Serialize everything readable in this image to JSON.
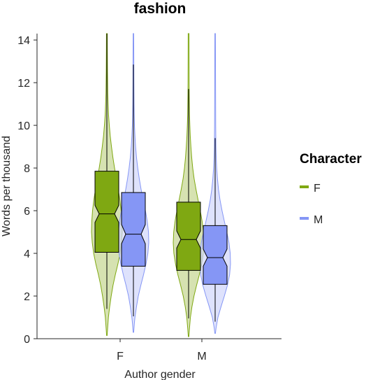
{
  "chart_data": {
    "type": "violin-box",
    "title": "fashion",
    "xlabel": "Author gender",
    "ylabel": "Words per thousand",
    "categories": [
      "F",
      "M"
    ],
    "ylim": [
      0,
      14.3
    ],
    "yticks": [
      0,
      2,
      4,
      6,
      8,
      10,
      12,
      14
    ],
    "legend": {
      "title": "Character",
      "placement": "right",
      "entries": [
        {
          "label": "F",
          "color": "#7fa812"
        },
        {
          "label": "M",
          "color": "#8596f5"
        }
      ]
    },
    "series": [
      {
        "name": "F",
        "color": "#7fa812",
        "violin_fill": "#c5d690",
        "groups": [
          {
            "category": "F",
            "q1": 4.05,
            "median": 5.85,
            "q3": 7.85,
            "notch_low": 5.45,
            "notch_high": 6.25,
            "whisker_low": 1.4,
            "whisker_high": 14.3,
            "min": 0.15,
            "max": 14.3,
            "density": [
              [
                0.15,
                0.02
              ],
              [
                0.5,
                0.05
              ],
              [
                1.0,
                0.1
              ],
              [
                1.5,
                0.18
              ],
              [
                2.0,
                0.28
              ],
              [
                2.5,
                0.4
              ],
              [
                3.0,
                0.55
              ],
              [
                3.5,
                0.72
              ],
              [
                4.0,
                0.86
              ],
              [
                4.5,
                0.95
              ],
              [
                5.0,
                1.0
              ],
              [
                5.5,
                0.98
              ],
              [
                6.0,
                0.93
              ],
              [
                6.5,
                0.85
              ],
              [
                7.0,
                0.74
              ],
              [
                7.5,
                0.62
              ],
              [
                8.0,
                0.5
              ],
              [
                8.5,
                0.39
              ],
              [
                9.0,
                0.3
              ],
              [
                9.5,
                0.22
              ],
              [
                10.0,
                0.16
              ],
              [
                10.5,
                0.11
              ],
              [
                11.0,
                0.08
              ],
              [
                11.5,
                0.06
              ],
              [
                12.0,
                0.05
              ],
              [
                12.5,
                0.04
              ],
              [
                13.0,
                0.035
              ],
              [
                13.5,
                0.03
              ],
              [
                14.3,
                0.025
              ]
            ]
          },
          {
            "category": "M",
            "q1": 3.2,
            "median": 4.65,
            "q3": 6.4,
            "notch_low": 4.25,
            "notch_high": 5.05,
            "whisker_low": 0.95,
            "whisker_high": 11.7,
            "min": 0.1,
            "max": 14.3,
            "density": [
              [
                0.1,
                0.02
              ],
              [
                0.5,
                0.06
              ],
              [
                1.0,
                0.12
              ],
              [
                1.5,
                0.22
              ],
              [
                2.0,
                0.35
              ],
              [
                2.5,
                0.52
              ],
              [
                3.0,
                0.7
              ],
              [
                3.5,
                0.85
              ],
              [
                4.0,
                0.96
              ],
              [
                4.5,
                1.0
              ],
              [
                5.0,
                0.97
              ],
              [
                5.5,
                0.88
              ],
              [
                6.0,
                0.76
              ],
              [
                6.5,
                0.62
              ],
              [
                7.0,
                0.48
              ],
              [
                7.5,
                0.36
              ],
              [
                8.0,
                0.27
              ],
              [
                8.5,
                0.2
              ],
              [
                9.0,
                0.15
              ],
              [
                9.5,
                0.11
              ],
              [
                10.0,
                0.08
              ],
              [
                10.5,
                0.06
              ],
              [
                11.0,
                0.05
              ],
              [
                11.5,
                0.04
              ],
              [
                12.0,
                0.035
              ],
              [
                13.0,
                0.03
              ],
              [
                14.3,
                0.025
              ]
            ]
          }
        ]
      },
      {
        "name": "M",
        "color": "#8596f5",
        "violin_fill": "#d0d6fb",
        "groups": [
          {
            "category": "F",
            "q1": 3.4,
            "median": 4.9,
            "q3": 6.85,
            "notch_low": 4.45,
            "notch_high": 5.35,
            "whisker_low": 1.05,
            "whisker_high": 12.85,
            "min": 0.3,
            "max": 14.3,
            "density": [
              [
                0.3,
                0.02
              ],
              [
                0.7,
                0.06
              ],
              [
                1.0,
                0.1
              ],
              [
                1.5,
                0.2
              ],
              [
                2.0,
                0.32
              ],
              [
                2.5,
                0.48
              ],
              [
                3.0,
                0.66
              ],
              [
                3.5,
                0.82
              ],
              [
                4.0,
                0.94
              ],
              [
                4.5,
                1.0
              ],
              [
                5.0,
                0.98
              ],
              [
                5.5,
                0.9
              ],
              [
                6.0,
                0.78
              ],
              [
                6.5,
                0.64
              ],
              [
                7.0,
                0.5
              ],
              [
                7.5,
                0.38
              ],
              [
                8.0,
                0.28
              ],
              [
                8.5,
                0.2
              ],
              [
                9.0,
                0.14
              ],
              [
                9.5,
                0.1
              ],
              [
                10.0,
                0.07
              ],
              [
                10.5,
                0.05
              ],
              [
                11.0,
                0.04
              ],
              [
                12.0,
                0.03
              ],
              [
                13.0,
                0.025
              ],
              [
                14.3,
                0.02
              ]
            ]
          },
          {
            "category": "M",
            "q1": 2.55,
            "median": 3.8,
            "q3": 5.3,
            "notch_low": 3.4,
            "notch_high": 4.2,
            "whisker_low": 0.8,
            "whisker_high": 9.4,
            "min": 0.25,
            "max": 14.3,
            "density": [
              [
                0.25,
                0.02
              ],
              [
                0.5,
                0.06
              ],
              [
                1.0,
                0.18
              ],
              [
                1.5,
                0.38
              ],
              [
                2.0,
                0.6
              ],
              [
                2.5,
                0.8
              ],
              [
                3.0,
                0.94
              ],
              [
                3.5,
                1.0
              ],
              [
                4.0,
                0.98
              ],
              [
                4.5,
                0.9
              ],
              [
                5.0,
                0.76
              ],
              [
                5.5,
                0.6
              ],
              [
                6.0,
                0.45
              ],
              [
                6.5,
                0.32
              ],
              [
                7.0,
                0.22
              ],
              [
                7.5,
                0.15
              ],
              [
                8.0,
                0.1
              ],
              [
                8.5,
                0.07
              ],
              [
                9.0,
                0.05
              ],
              [
                10.0,
                0.035
              ],
              [
                11.0,
                0.03
              ],
              [
                12.0,
                0.025
              ],
              [
                14.3,
                0.02
              ]
            ]
          }
        ]
      }
    ]
  }
}
